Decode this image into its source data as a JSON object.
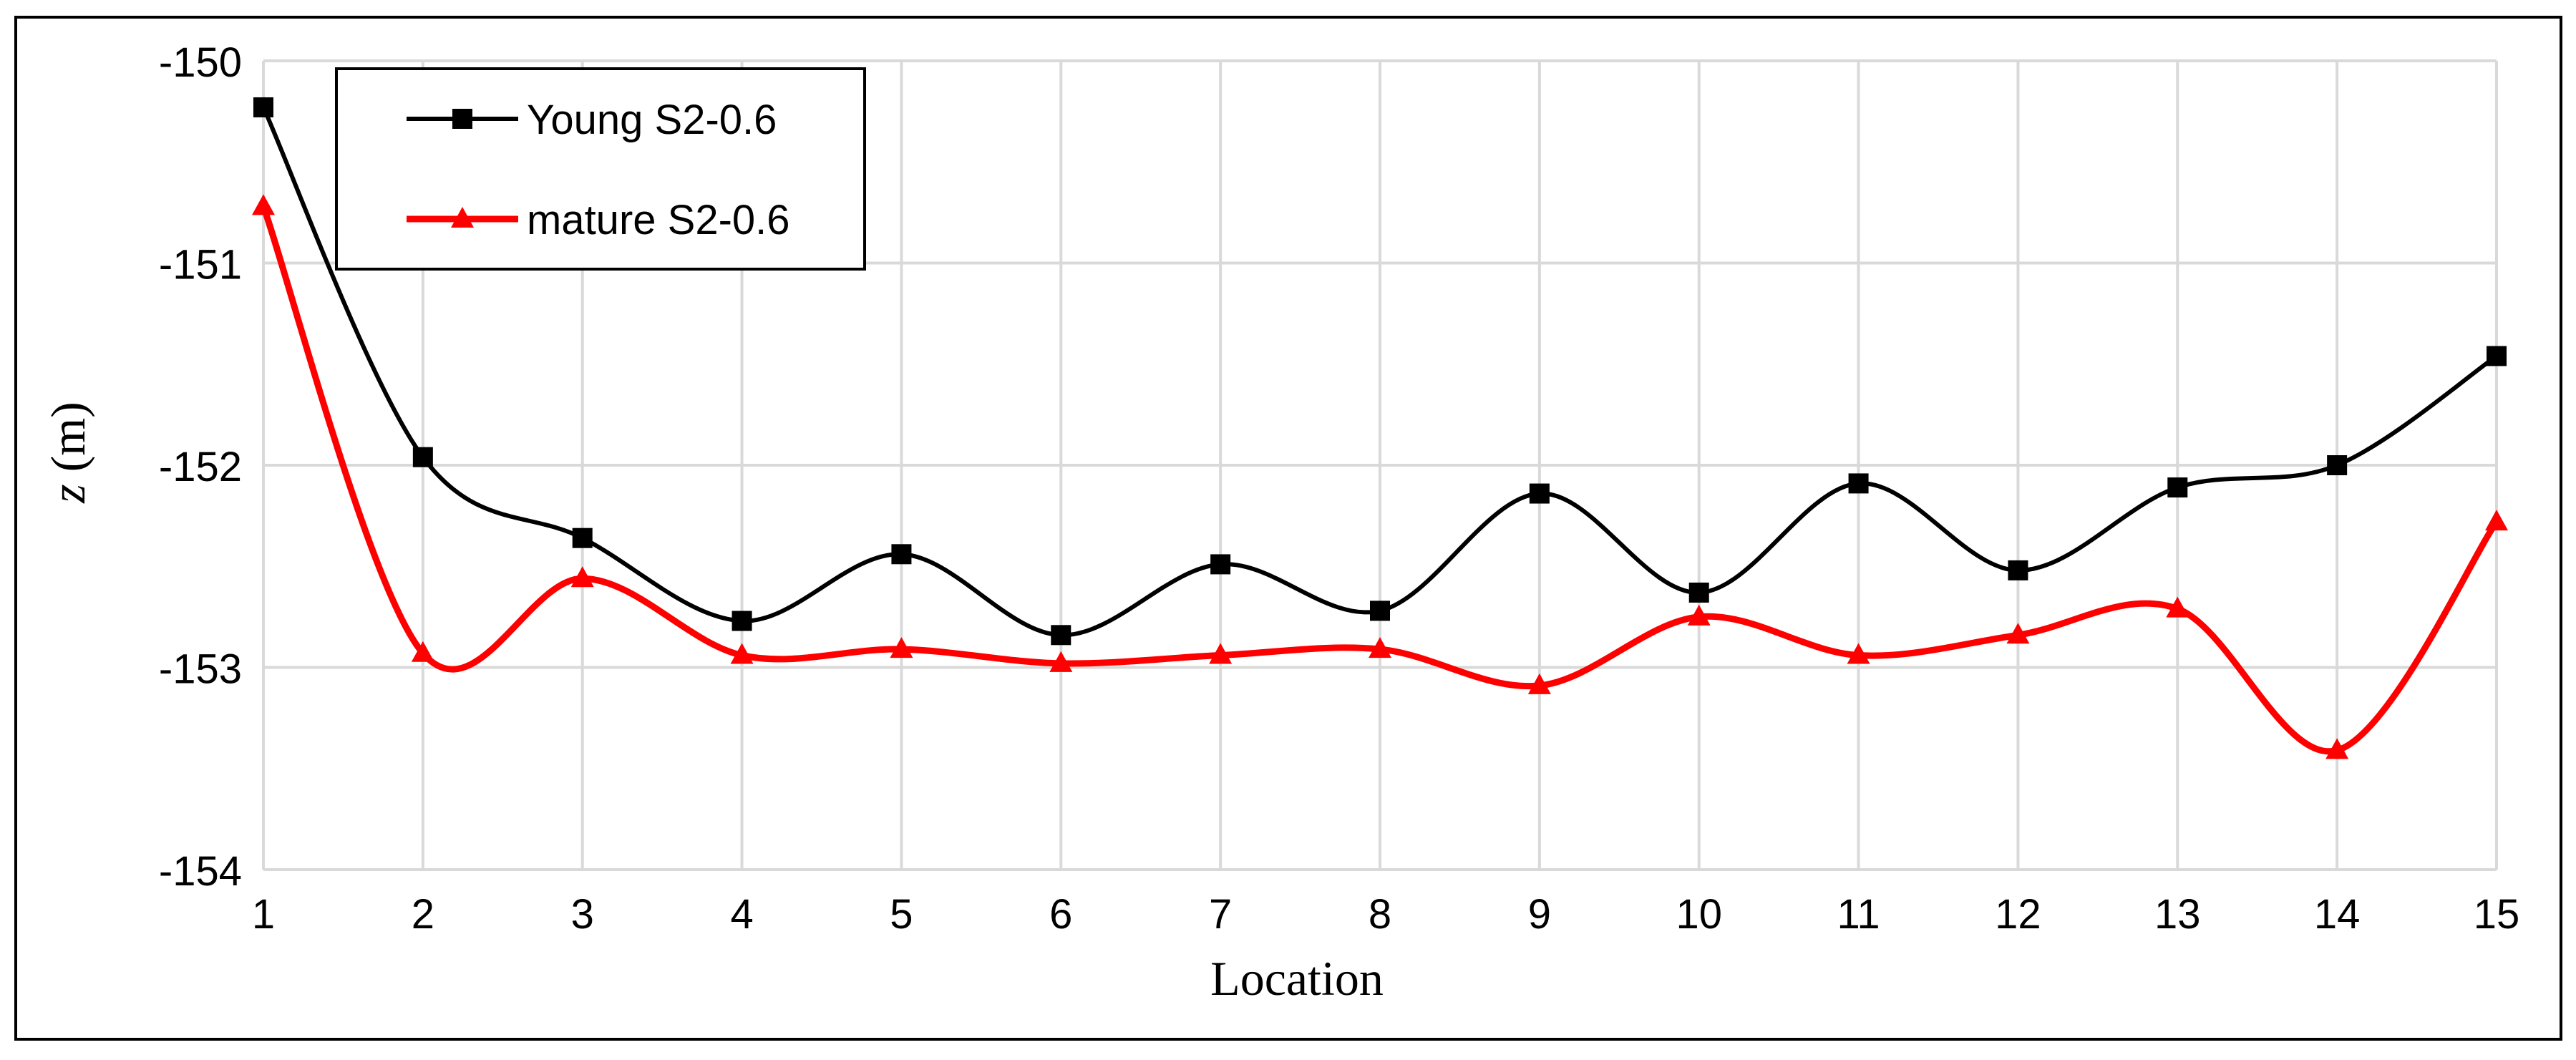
{
  "chart_data": {
    "type": "line",
    "smooth": true,
    "x": [
      1,
      2,
      3,
      4,
      5,
      6,
      7,
      8,
      9,
      10,
      11,
      12,
      13,
      14,
      15
    ],
    "xlabel": "Location",
    "ylabel_var": "z",
    "ylabel_unit": " (m)",
    "ylim": [
      -154,
      -150
    ],
    "yticks": [
      -150,
      -151,
      -152,
      -153,
      -154
    ],
    "grid": true,
    "legend_position": "top-left",
    "series": [
      {
        "name": "Young S2-0.6",
        "color": "#000000",
        "marker": "square",
        "values": [
          -150.23,
          -151.96,
          -152.36,
          -152.77,
          -152.44,
          -152.84,
          -152.49,
          -152.72,
          -152.14,
          -152.63,
          -152.09,
          -152.52,
          -152.11,
          -152.0,
          -151.46
        ]
      },
      {
        "name": "mature S2-0.6",
        "color": "#ff0000",
        "marker": "triangle",
        "values": [
          -150.72,
          -152.93,
          -152.56,
          -152.94,
          -152.91,
          -152.98,
          -152.94,
          -152.91,
          -153.09,
          -152.75,
          -152.94,
          -152.84,
          -152.71,
          -153.41,
          -152.28
        ]
      }
    ]
  }
}
